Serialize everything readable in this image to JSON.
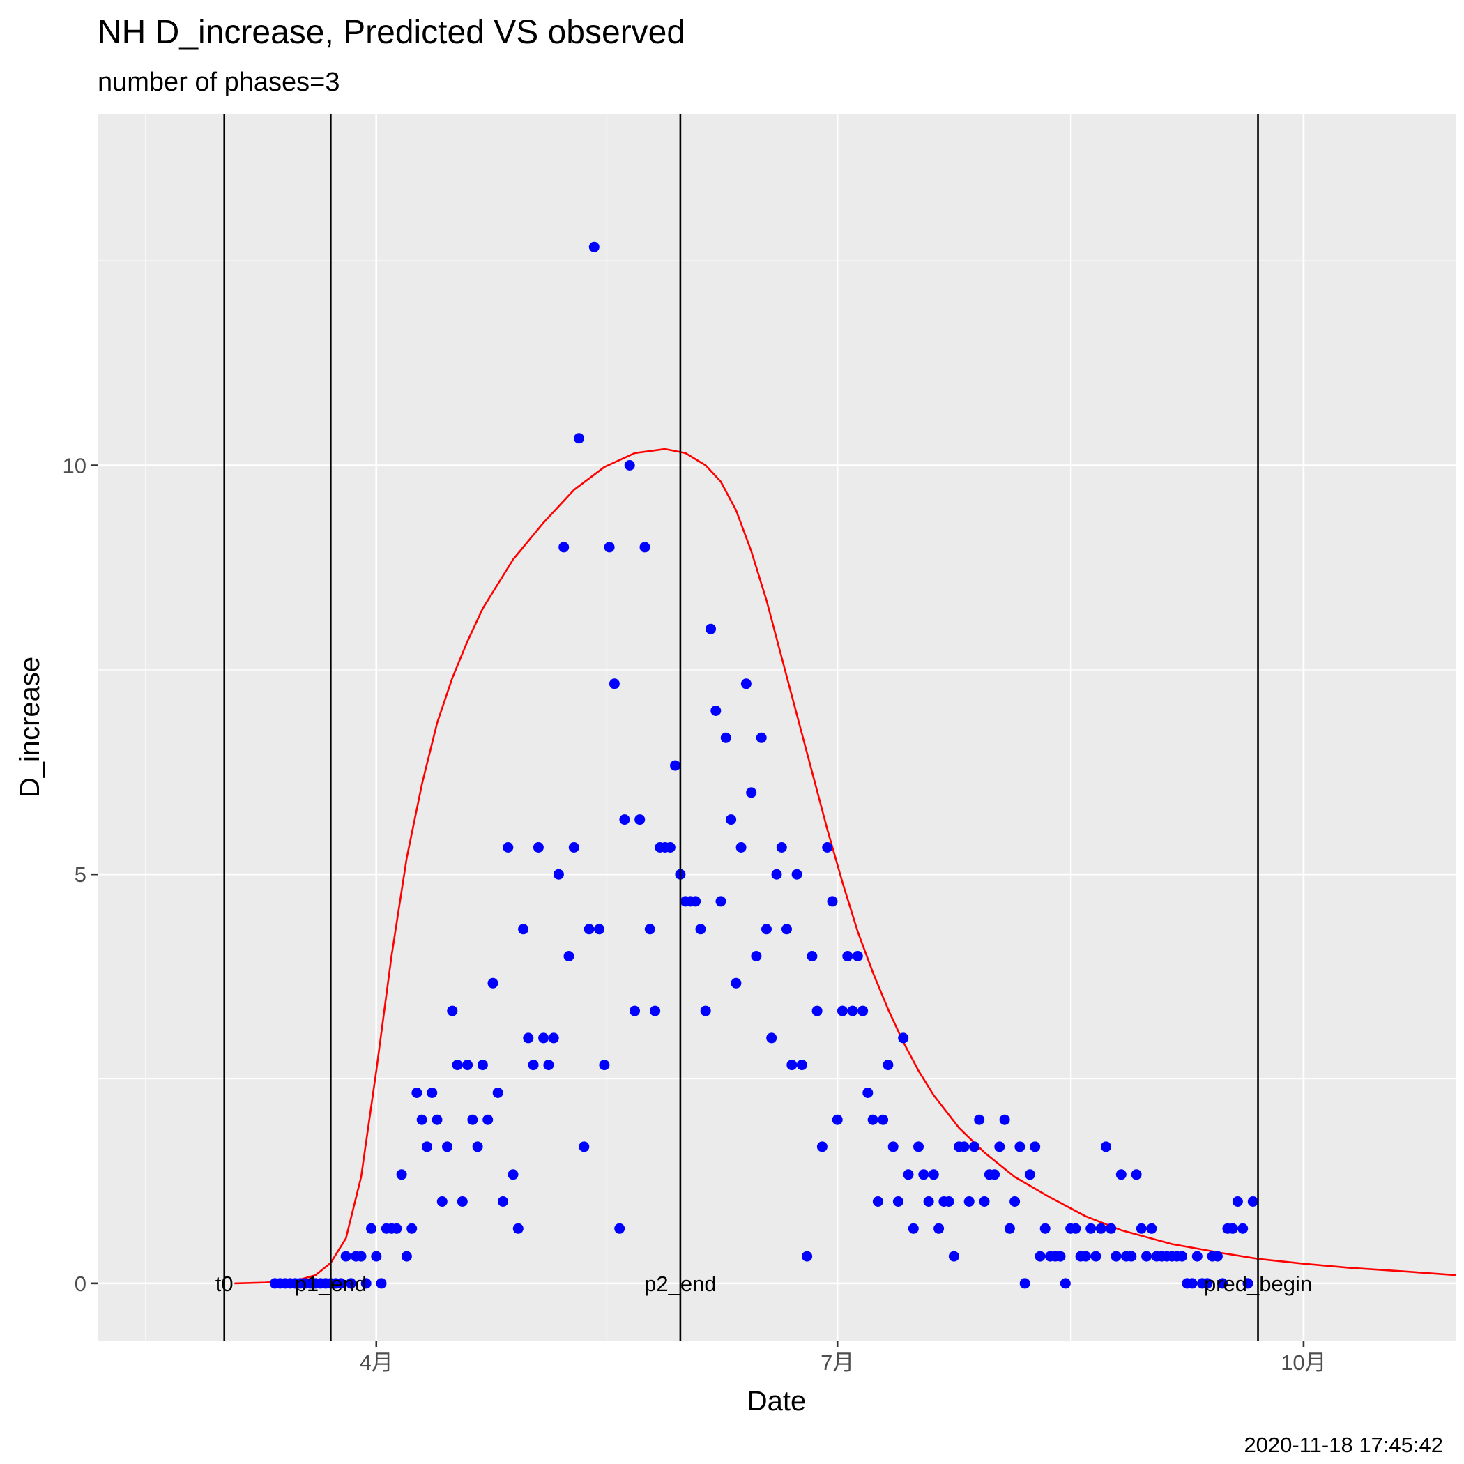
{
  "chart_data": {
    "type": "scatter",
    "title": "NH D_increase, Predicted VS observed",
    "subtitle": "number of phases=3",
    "xlabel": "Date",
    "ylabel": "D_increase",
    "caption": "2020-11-18 17:45:42",
    "xlim": [
      "2020-02-06",
      "2020-10-31"
    ],
    "ylim": [
      -0.7,
      14.3
    ],
    "grid": true,
    "x_ticks": [
      {
        "date": "2020-04-01",
        "label": "4月"
      },
      {
        "date": "2020-07-01",
        "label": "7月"
      },
      {
        "date": "2020-10-01",
        "label": "10月"
      }
    ],
    "y_ticks": [
      0,
      5,
      10
    ],
    "vlines": [
      {
        "date": "2020-03-02",
        "label": "t0"
      },
      {
        "date": "2020-03-23",
        "label": "p1_end"
      },
      {
        "date": "2020-05-31",
        "label": "p2_end"
      },
      {
        "date": "2020-09-22",
        "label": "pred_begin"
      }
    ],
    "series": [
      {
        "kind": "points",
        "color": "#0000ff",
        "points": [
          [
            "2020-03-12",
            0
          ],
          [
            "2020-03-13",
            0
          ],
          [
            "2020-03-14",
            0
          ],
          [
            "2020-03-15",
            0
          ],
          [
            "2020-03-16",
            0
          ],
          [
            "2020-03-17",
            0
          ],
          [
            "2020-03-18",
            0
          ],
          [
            "2020-03-19",
            0
          ],
          [
            "2020-03-20",
            0
          ],
          [
            "2020-03-21",
            0
          ],
          [
            "2020-03-22",
            0
          ],
          [
            "2020-03-23",
            0
          ],
          [
            "2020-03-24",
            0
          ],
          [
            "2020-03-25",
            0
          ],
          [
            "2020-03-26",
            0.33
          ],
          [
            "2020-03-27",
            0
          ],
          [
            "2020-03-28",
            0.33
          ],
          [
            "2020-03-29",
            0.33
          ],
          [
            "2020-03-30",
            0
          ],
          [
            "2020-03-31",
            0.67
          ],
          [
            "2020-04-01",
            0.33
          ],
          [
            "2020-04-02",
            0
          ],
          [
            "2020-04-03",
            0.67
          ],
          [
            "2020-04-04",
            0.67
          ],
          [
            "2020-04-05",
            0.67
          ],
          [
            "2020-04-06",
            1.33
          ],
          [
            "2020-04-07",
            0.33
          ],
          [
            "2020-04-08",
            0.67
          ],
          [
            "2020-04-09",
            2.33
          ],
          [
            "2020-04-10",
            2
          ],
          [
            "2020-04-11",
            1.67
          ],
          [
            "2020-04-12",
            2.33
          ],
          [
            "2020-04-13",
            2
          ],
          [
            "2020-04-14",
            1
          ],
          [
            "2020-04-15",
            1.67
          ],
          [
            "2020-04-16",
            3.33
          ],
          [
            "2020-04-17",
            2.67
          ],
          [
            "2020-04-18",
            1
          ],
          [
            "2020-04-19",
            2.67
          ],
          [
            "2020-04-20",
            2
          ],
          [
            "2020-04-21",
            1.67
          ],
          [
            "2020-04-22",
            2.67
          ],
          [
            "2020-04-23",
            2
          ],
          [
            "2020-04-24",
            3.67
          ],
          [
            "2020-04-25",
            2.33
          ],
          [
            "2020-04-26",
            1
          ],
          [
            "2020-04-27",
            5.33
          ],
          [
            "2020-04-28",
            1.33
          ],
          [
            "2020-04-29",
            0.67
          ],
          [
            "2020-04-30",
            4.33
          ],
          [
            "2020-05-01",
            3
          ],
          [
            "2020-05-02",
            2.67
          ],
          [
            "2020-05-03",
            5.33
          ],
          [
            "2020-05-04",
            3
          ],
          [
            "2020-05-05",
            2.67
          ],
          [
            "2020-05-06",
            3
          ],
          [
            "2020-05-07",
            5
          ],
          [
            "2020-05-08",
            9
          ],
          [
            "2020-05-09",
            4
          ],
          [
            "2020-05-10",
            5.33
          ],
          [
            "2020-05-11",
            10.33
          ],
          [
            "2020-05-12",
            1.67
          ],
          [
            "2020-05-13",
            4.33
          ],
          [
            "2020-05-14",
            12.67
          ],
          [
            "2020-05-15",
            4.33
          ],
          [
            "2020-05-16",
            2.67
          ],
          [
            "2020-05-17",
            9
          ],
          [
            "2020-05-18",
            7.33
          ],
          [
            "2020-05-19",
            0.67
          ],
          [
            "2020-05-20",
            5.67
          ],
          [
            "2020-05-21",
            10
          ],
          [
            "2020-05-22",
            3.33
          ],
          [
            "2020-05-23",
            5.67
          ],
          [
            "2020-05-24",
            9
          ],
          [
            "2020-05-25",
            4.33
          ],
          [
            "2020-05-26",
            3.33
          ],
          [
            "2020-05-27",
            5.33
          ],
          [
            "2020-05-28",
            5.33
          ],
          [
            "2020-05-29",
            5.33
          ],
          [
            "2020-05-30",
            6.33
          ],
          [
            "2020-05-31",
            5
          ],
          [
            "2020-06-01",
            4.67
          ],
          [
            "2020-06-02",
            4.67
          ],
          [
            "2020-06-03",
            4.67
          ],
          [
            "2020-06-04",
            4.33
          ],
          [
            "2020-06-05",
            3.33
          ],
          [
            "2020-06-06",
            8
          ],
          [
            "2020-06-07",
            7
          ],
          [
            "2020-06-08",
            4.67
          ],
          [
            "2020-06-09",
            6.67
          ],
          [
            "2020-06-10",
            5.67
          ],
          [
            "2020-06-11",
            3.67
          ],
          [
            "2020-06-12",
            5.33
          ],
          [
            "2020-06-13",
            7.33
          ],
          [
            "2020-06-14",
            6
          ],
          [
            "2020-06-15",
            4
          ],
          [
            "2020-06-16",
            6.67
          ],
          [
            "2020-06-17",
            4.33
          ],
          [
            "2020-06-18",
            3
          ],
          [
            "2020-06-19",
            5
          ],
          [
            "2020-06-20",
            5.33
          ],
          [
            "2020-06-21",
            4.33
          ],
          [
            "2020-06-22",
            2.67
          ],
          [
            "2020-06-23",
            5
          ],
          [
            "2020-06-24",
            2.67
          ],
          [
            "2020-06-25",
            0.33
          ],
          [
            "2020-06-26",
            4
          ],
          [
            "2020-06-27",
            3.33
          ],
          [
            "2020-06-28",
            1.67
          ],
          [
            "2020-06-29",
            5.33
          ],
          [
            "2020-06-30",
            4.67
          ],
          [
            "2020-07-01",
            2
          ],
          [
            "2020-07-02",
            3.33
          ],
          [
            "2020-07-03",
            4
          ],
          [
            "2020-07-04",
            3.33
          ],
          [
            "2020-07-05",
            4
          ],
          [
            "2020-07-06",
            3.33
          ],
          [
            "2020-07-07",
            2.33
          ],
          [
            "2020-07-08",
            2
          ],
          [
            "2020-07-09",
            1
          ],
          [
            "2020-07-10",
            2
          ],
          [
            "2020-07-11",
            2.67
          ],
          [
            "2020-07-12",
            1.67
          ],
          [
            "2020-07-13",
            1
          ],
          [
            "2020-07-14",
            3
          ],
          [
            "2020-07-15",
            1.33
          ],
          [
            "2020-07-16",
            0.67
          ],
          [
            "2020-07-17",
            1.67
          ],
          [
            "2020-07-18",
            1.33
          ],
          [
            "2020-07-19",
            1
          ],
          [
            "2020-07-20",
            1.33
          ],
          [
            "2020-07-21",
            0.67
          ],
          [
            "2020-07-22",
            1
          ],
          [
            "2020-07-23",
            1
          ],
          [
            "2020-07-24",
            0.33
          ],
          [
            "2020-07-25",
            1.67
          ],
          [
            "2020-07-26",
            1.67
          ],
          [
            "2020-07-27",
            1
          ],
          [
            "2020-07-28",
            1.67
          ],
          [
            "2020-07-29",
            2
          ],
          [
            "2020-07-30",
            1
          ],
          [
            "2020-07-31",
            1.33
          ],
          [
            "2020-08-01",
            1.33
          ],
          [
            "2020-08-02",
            1.67
          ],
          [
            "2020-08-03",
            2
          ],
          [
            "2020-08-04",
            0.67
          ],
          [
            "2020-08-05",
            1
          ],
          [
            "2020-08-06",
            1.67
          ],
          [
            "2020-08-07",
            0
          ],
          [
            "2020-08-08",
            1.33
          ],
          [
            "2020-08-09",
            1.67
          ],
          [
            "2020-08-10",
            0.33
          ],
          [
            "2020-08-11",
            0.67
          ],
          [
            "2020-08-12",
            0.33
          ],
          [
            "2020-08-13",
            0.33
          ],
          [
            "2020-08-14",
            0.33
          ],
          [
            "2020-08-15",
            0
          ],
          [
            "2020-08-16",
            0.67
          ],
          [
            "2020-08-17",
            0.67
          ],
          [
            "2020-08-18",
            0.33
          ],
          [
            "2020-08-19",
            0.33
          ],
          [
            "2020-08-20",
            0.67
          ],
          [
            "2020-08-21",
            0.33
          ],
          [
            "2020-08-22",
            0.67
          ],
          [
            "2020-08-23",
            1.67
          ],
          [
            "2020-08-24",
            0.67
          ],
          [
            "2020-08-25",
            0.33
          ],
          [
            "2020-08-26",
            1.33
          ],
          [
            "2020-08-27",
            0.33
          ],
          [
            "2020-08-28",
            0.33
          ],
          [
            "2020-08-29",
            1.33
          ],
          [
            "2020-08-30",
            0.67
          ],
          [
            "2020-08-31",
            0.33
          ],
          [
            "2020-09-01",
            0.67
          ],
          [
            "2020-09-02",
            0.33
          ],
          [
            "2020-09-03",
            0.33
          ],
          [
            "2020-09-04",
            0.33
          ],
          [
            "2020-09-05",
            0.33
          ],
          [
            "2020-09-06",
            0.33
          ],
          [
            "2020-09-07",
            0.33
          ],
          [
            "2020-09-08",
            0
          ],
          [
            "2020-09-09",
            0
          ],
          [
            "2020-09-10",
            0.33
          ],
          [
            "2020-09-11",
            0
          ],
          [
            "2020-09-12",
            0
          ],
          [
            "2020-09-13",
            0.33
          ],
          [
            "2020-09-14",
            0.33
          ],
          [
            "2020-09-15",
            0
          ],
          [
            "2020-09-16",
            0.67
          ],
          [
            "2020-09-17",
            0.67
          ],
          [
            "2020-09-18",
            1
          ],
          [
            "2020-09-19",
            0.67
          ],
          [
            "2020-09-20",
            0
          ],
          [
            "2020-09-21",
            1
          ]
        ]
      },
      {
        "kind": "line",
        "color": "#ff0000",
        "points": [
          [
            "2020-03-04",
            0
          ],
          [
            "2020-03-10",
            0.01
          ],
          [
            "2020-03-16",
            0.03
          ],
          [
            "2020-03-20",
            0.1
          ],
          [
            "2020-03-23",
            0.25
          ],
          [
            "2020-03-26",
            0.55
          ],
          [
            "2020-03-29",
            1.3
          ],
          [
            "2020-04-01",
            2.6
          ],
          [
            "2020-04-04",
            4.0
          ],
          [
            "2020-04-07",
            5.2
          ],
          [
            "2020-04-10",
            6.1
          ],
          [
            "2020-04-13",
            6.85
          ],
          [
            "2020-04-16",
            7.4
          ],
          [
            "2020-04-19",
            7.85
          ],
          [
            "2020-04-22",
            8.25
          ],
          [
            "2020-04-28",
            8.85
          ],
          [
            "2020-05-04",
            9.3
          ],
          [
            "2020-05-10",
            9.7
          ],
          [
            "2020-05-16",
            9.98
          ],
          [
            "2020-05-22",
            10.15
          ],
          [
            "2020-05-28",
            10.2
          ],
          [
            "2020-06-01",
            10.15
          ],
          [
            "2020-06-05",
            10
          ],
          [
            "2020-06-08",
            9.8
          ],
          [
            "2020-06-11",
            9.45
          ],
          [
            "2020-06-14",
            8.95
          ],
          [
            "2020-06-17",
            8.35
          ],
          [
            "2020-06-20",
            7.65
          ],
          [
            "2020-06-23",
            6.95
          ],
          [
            "2020-06-26",
            6.25
          ],
          [
            "2020-06-29",
            5.55
          ],
          [
            "2020-07-02",
            4.9
          ],
          [
            "2020-07-05",
            4.3
          ],
          [
            "2020-07-08",
            3.8
          ],
          [
            "2020-07-11",
            3.35
          ],
          [
            "2020-07-14",
            2.95
          ],
          [
            "2020-07-17",
            2.6
          ],
          [
            "2020-07-20",
            2.3
          ],
          [
            "2020-07-25",
            1.9
          ],
          [
            "2020-07-30",
            1.6
          ],
          [
            "2020-08-05",
            1.3
          ],
          [
            "2020-08-12",
            1.05
          ],
          [
            "2020-08-19",
            0.82
          ],
          [
            "2020-08-26",
            0.65
          ],
          [
            "2020-09-05",
            0.48
          ],
          [
            "2020-09-15",
            0.37
          ],
          [
            "2020-09-22",
            0.3
          ],
          [
            "2020-10-01",
            0.24
          ],
          [
            "2020-10-10",
            0.19
          ],
          [
            "2020-10-20",
            0.15
          ],
          [
            "2020-10-31",
            0.1
          ]
        ]
      }
    ]
  }
}
